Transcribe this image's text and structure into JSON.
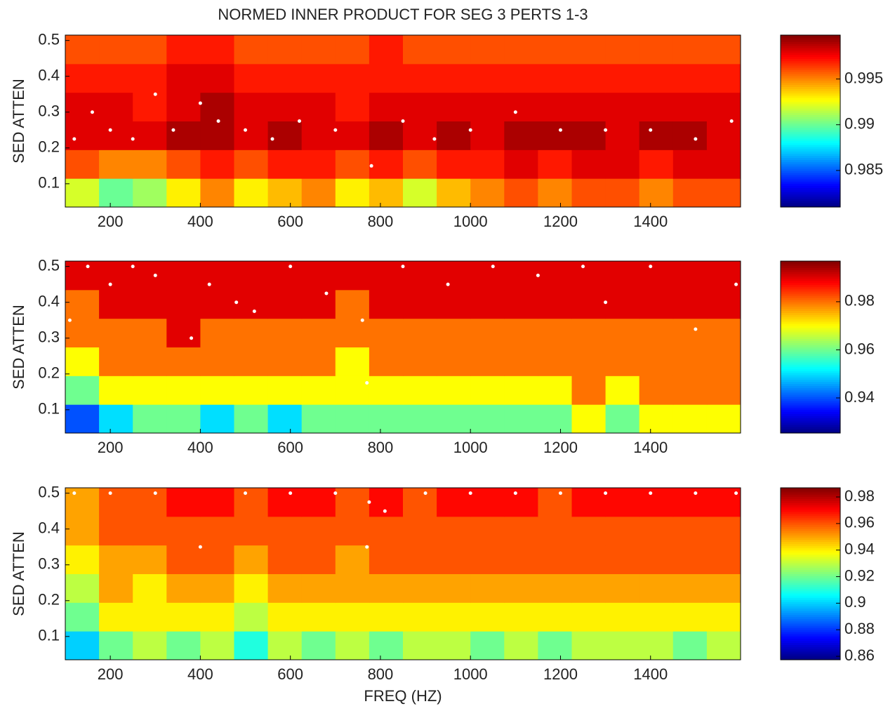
{
  "chart_data": [
    {
      "type": "heatmap",
      "title": "NORMED INNER PRODUCT FOR SEG 3 PERTS 1-3",
      "ylabel": "SED ATTEN",
      "colormap": "jet",
      "xlim": [
        100,
        1600
      ],
      "ylim": [
        0.035,
        0.515
      ],
      "xticks": [
        200,
        400,
        600,
        800,
        1000,
        1200,
        1400
      ],
      "yticks": [
        0.1,
        0.2,
        0.3,
        0.4,
        0.5
      ],
      "clim": [
        0.981,
        0.9998
      ],
      "cticks": [
        0.985,
        0.99,
        0.995
      ],
      "x": [
        137.5,
        212.5,
        287.5,
        362.5,
        437.5,
        512.5,
        587.5,
        662.5,
        737.5,
        812.5,
        887.5,
        962.5,
        1037.5,
        1112.5,
        1187.5,
        1262.5,
        1337.5,
        1412.5,
        1487.5,
        1562.5
      ],
      "y": [
        0.075,
        0.155,
        0.235,
        0.315,
        0.395,
        0.475
      ],
      "z": [
        [
          0.992,
          0.99,
          0.991,
          0.993,
          0.995,
          0.993,
          0.994,
          0.995,
          0.993,
          0.994,
          0.992,
          0.994,
          0.995,
          0.996,
          0.995,
          0.996,
          0.996,
          0.995,
          0.996,
          0.996
        ],
        [
          0.996,
          0.995,
          0.995,
          0.996,
          0.997,
          0.996,
          0.997,
          0.997,
          0.996,
          0.997,
          0.996,
          0.997,
          0.997,
          0.998,
          0.997,
          0.998,
          0.998,
          0.997,
          0.998,
          0.998
        ],
        [
          0.998,
          0.998,
          0.998,
          0.999,
          0.999,
          0.998,
          0.999,
          0.998,
          0.998,
          0.999,
          0.998,
          0.999,
          0.998,
          0.999,
          0.999,
          0.999,
          0.998,
          0.999,
          0.999,
          0.998
        ],
        [
          0.998,
          0.998,
          0.997,
          0.998,
          0.999,
          0.998,
          0.998,
          0.998,
          0.997,
          0.998,
          0.998,
          0.998,
          0.998,
          0.998,
          0.998,
          0.998,
          0.998,
          0.998,
          0.998,
          0.998
        ],
        [
          0.997,
          0.997,
          0.997,
          0.998,
          0.998,
          0.997,
          0.997,
          0.997,
          0.997,
          0.997,
          0.997,
          0.997,
          0.997,
          0.997,
          0.997,
          0.997,
          0.997,
          0.997,
          0.997,
          0.997
        ],
        [
          0.996,
          0.996,
          0.996,
          0.997,
          0.997,
          0.996,
          0.996,
          0.996,
          0.996,
          0.997,
          0.996,
          0.996,
          0.996,
          0.996,
          0.996,
          0.996,
          0.996,
          0.996,
          0.996,
          0.996
        ]
      ],
      "max_points": {
        "x": [
          120,
          160,
          200,
          250,
          300,
          340,
          400,
          440,
          500,
          560,
          620,
          700,
          780,
          850,
          920,
          1000,
          1100,
          1200,
          1300,
          1400,
          1500,
          1580
        ],
        "y": [
          0.225,
          0.3,
          0.25,
          0.225,
          0.35,
          0.25,
          0.325,
          0.275,
          0.25,
          0.225,
          0.275,
          0.25,
          0.15,
          0.275,
          0.225,
          0.25,
          0.3,
          0.25,
          0.25,
          0.25,
          0.225,
          0.275
        ]
      }
    },
    {
      "type": "heatmap",
      "ylabel": "SED ATTEN",
      "colormap": "jet",
      "xlim": [
        100,
        1600
      ],
      "ylim": [
        0.035,
        0.515
      ],
      "xticks": [
        200,
        400,
        600,
        800,
        1000,
        1200,
        1400
      ],
      "yticks": [
        0.1,
        0.2,
        0.3,
        0.4,
        0.5
      ],
      "clim": [
        0.9254,
        0.9969
      ],
      "cticks": [
        0.94,
        0.96,
        0.98
      ],
      "x": [
        137.5,
        212.5,
        287.5,
        362.5,
        437.5,
        512.5,
        587.5,
        662.5,
        737.5,
        812.5,
        887.5,
        962.5,
        1037.5,
        1112.5,
        1187.5,
        1262.5,
        1337.5,
        1412.5,
        1487.5,
        1562.5
      ],
      "y": [
        0.075,
        0.155,
        0.235,
        0.315,
        0.395,
        0.475
      ],
      "z": [
        [
          0.94,
          0.95,
          0.96,
          0.96,
          0.95,
          0.96,
          0.95,
          0.96,
          0.96,
          0.96,
          0.96,
          0.96,
          0.96,
          0.96,
          0.96,
          0.97,
          0.96,
          0.97,
          0.97,
          0.97
        ],
        [
          0.96,
          0.97,
          0.97,
          0.97,
          0.97,
          0.97,
          0.97,
          0.97,
          0.97,
          0.97,
          0.97,
          0.97,
          0.97,
          0.97,
          0.97,
          0.98,
          0.97,
          0.98,
          0.98,
          0.98
        ],
        [
          0.97,
          0.98,
          0.98,
          0.98,
          0.98,
          0.98,
          0.98,
          0.98,
          0.97,
          0.98,
          0.98,
          0.98,
          0.98,
          0.98,
          0.98,
          0.98,
          0.98,
          0.98,
          0.98,
          0.98
        ],
        [
          0.98,
          0.98,
          0.98,
          0.99,
          0.98,
          0.98,
          0.98,
          0.98,
          0.98,
          0.98,
          0.98,
          0.98,
          0.98,
          0.98,
          0.98,
          0.98,
          0.98,
          0.98,
          0.98,
          0.98
        ],
        [
          0.98,
          0.99,
          0.99,
          0.99,
          0.99,
          0.99,
          0.99,
          0.99,
          0.98,
          0.99,
          0.99,
          0.99,
          0.99,
          0.99,
          0.99,
          0.99,
          0.99,
          0.99,
          0.99,
          0.99
        ],
        [
          0.99,
          0.99,
          0.99,
          0.99,
          0.99,
          0.99,
          0.99,
          0.99,
          0.99,
          0.99,
          0.99,
          0.99,
          0.99,
          0.99,
          0.99,
          0.99,
          0.99,
          0.99,
          0.99,
          0.99
        ]
      ],
      "max_points": {
        "x": [
          110,
          150,
          200,
          250,
          300,
          380,
          420,
          480,
          520,
          600,
          680,
          760,
          770,
          850,
          950,
          1050,
          1150,
          1250,
          1300,
          1400,
          1500,
          1590
        ],
        "y": [
          0.35,
          0.5,
          0.45,
          0.5,
          0.475,
          0.3,
          0.45,
          0.4,
          0.375,
          0.5,
          0.425,
          0.35,
          0.175,
          0.5,
          0.45,
          0.5,
          0.475,
          0.5,
          0.4,
          0.5,
          0.325,
          0.45
        ]
      }
    },
    {
      "type": "heatmap",
      "ylabel": "SED ATTEN",
      "xlabel": "FREQ (HZ)",
      "colormap": "jet",
      "xlim": [
        100,
        1600
      ],
      "ylim": [
        0.035,
        0.515
      ],
      "xticks": [
        200,
        400,
        600,
        800,
        1000,
        1200,
        1400
      ],
      "yticks": [
        0.1,
        0.2,
        0.3,
        0.4,
        0.5
      ],
      "clim": [
        0.8574,
        0.9869
      ],
      "cticks": [
        0.86,
        0.88,
        0.9,
        0.92,
        0.94,
        0.96,
        0.98
      ],
      "x": [
        137.5,
        212.5,
        287.5,
        362.5,
        437.5,
        512.5,
        587.5,
        662.5,
        737.5,
        812.5,
        887.5,
        962.5,
        1037.5,
        1112.5,
        1187.5,
        1262.5,
        1337.5,
        1412.5,
        1487.5,
        1562.5
      ],
      "y": [
        0.075,
        0.155,
        0.235,
        0.315,
        0.395,
        0.475
      ],
      "z": [
        [
          0.9,
          0.92,
          0.93,
          0.92,
          0.93,
          0.91,
          0.93,
          0.92,
          0.93,
          0.92,
          0.93,
          0.93,
          0.92,
          0.93,
          0.92,
          0.93,
          0.93,
          0.93,
          0.92,
          0.93
        ],
        [
          0.92,
          0.94,
          0.94,
          0.94,
          0.94,
          0.93,
          0.94,
          0.94,
          0.94,
          0.94,
          0.94,
          0.94,
          0.94,
          0.94,
          0.94,
          0.94,
          0.94,
          0.94,
          0.94,
          0.94
        ],
        [
          0.93,
          0.95,
          0.94,
          0.95,
          0.95,
          0.94,
          0.95,
          0.95,
          0.95,
          0.95,
          0.95,
          0.95,
          0.95,
          0.95,
          0.95,
          0.95,
          0.95,
          0.95,
          0.95,
          0.95
        ],
        [
          0.94,
          0.95,
          0.95,
          0.96,
          0.96,
          0.95,
          0.96,
          0.96,
          0.95,
          0.96,
          0.96,
          0.96,
          0.96,
          0.96,
          0.96,
          0.96,
          0.96,
          0.96,
          0.96,
          0.96
        ],
        [
          0.95,
          0.96,
          0.96,
          0.96,
          0.96,
          0.96,
          0.96,
          0.96,
          0.96,
          0.96,
          0.96,
          0.96,
          0.96,
          0.96,
          0.96,
          0.96,
          0.96,
          0.96,
          0.96,
          0.96
        ],
        [
          0.95,
          0.96,
          0.96,
          0.97,
          0.97,
          0.96,
          0.97,
          0.97,
          0.96,
          0.97,
          0.96,
          0.97,
          0.97,
          0.97,
          0.96,
          0.97,
          0.97,
          0.97,
          0.97,
          0.97
        ]
      ],
      "max_points": {
        "x": [
          120,
          200,
          300,
          400,
          500,
          600,
          700,
          770,
          775,
          810,
          900,
          1000,
          1100,
          1200,
          1300,
          1400,
          1500,
          1590
        ],
        "y": [
          0.5,
          0.5,
          0.5,
          0.35,
          0.5,
          0.5,
          0.5,
          0.35,
          0.475,
          0.45,
          0.5,
          0.5,
          0.5,
          0.5,
          0.5,
          0.5,
          0.5,
          0.5
        ]
      }
    }
  ]
}
